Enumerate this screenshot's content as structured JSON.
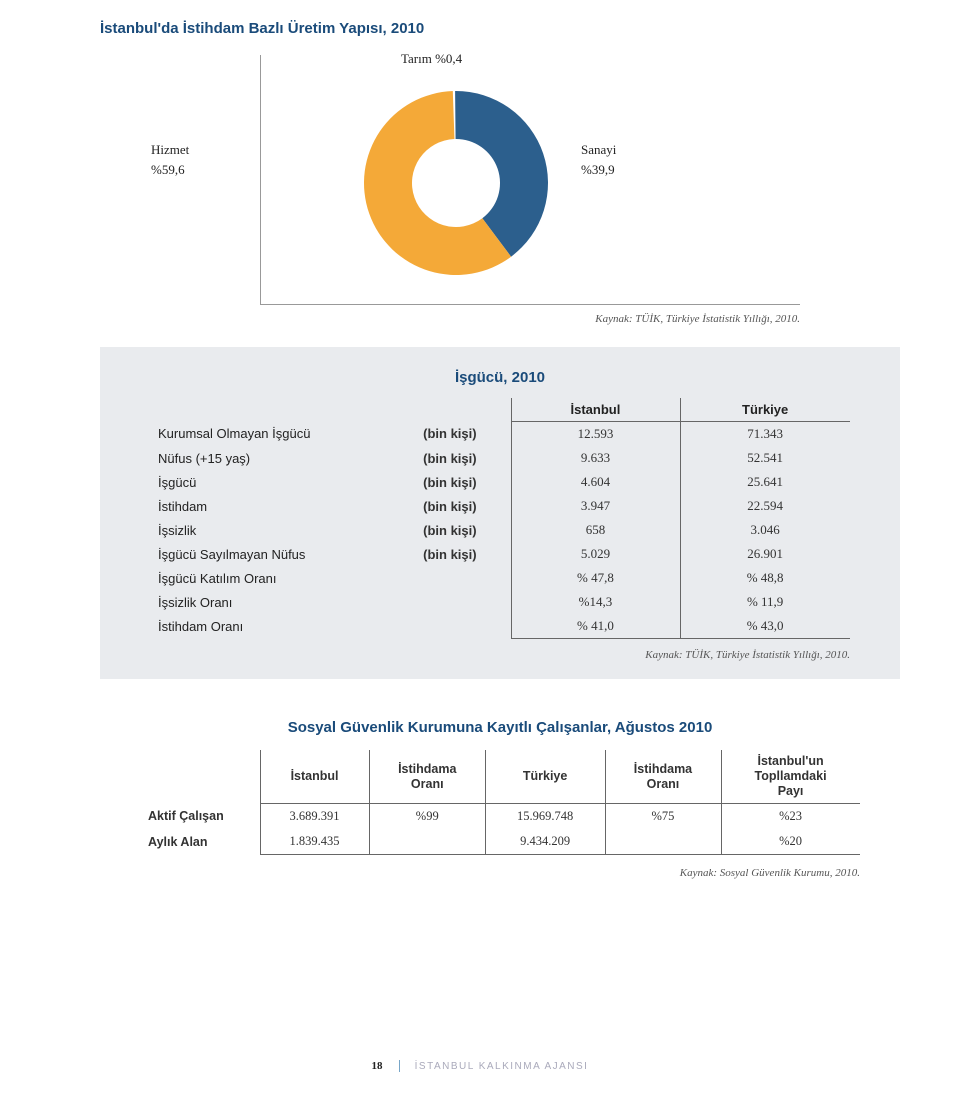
{
  "chart": {
    "title": "İstanbul'da İstihdam Bazlı Üretim Yapısı, 2010",
    "type": "donut",
    "inner_radius": 44,
    "outer_radius": 92,
    "top_label": "Tarım %0,4",
    "left_label_line1": "Hizmet",
    "left_label_line2": "%59,6",
    "right_label_line1": "Sanayi",
    "right_label_line2": "%39,9",
    "slices": [
      {
        "label": "Tarım",
        "value": 0.4,
        "color": "#ffffff"
      },
      {
        "label": "Sanayi",
        "value": 39.9,
        "color": "#2c5f8d"
      },
      {
        "label": "Hizmet",
        "value": 59.6,
        "color": "#f4a938"
      }
    ],
    "background_color": "#ffffff",
    "axis_color": "#999999",
    "source": "Kaynak: TÜİK, Türkiye İstatistik Yıllığı, 2010."
  },
  "panel": {
    "title": "İşgücü, 2010",
    "background_color": "#e9ebee",
    "col1": "İstanbul",
    "col2": "Türkiye",
    "rows": [
      {
        "label": "Kurumsal Olmayan İşgücü",
        "unit": "(bin kişi)",
        "v1": "12.593",
        "v2": "71.343"
      },
      {
        "label": "Nüfus (+15 yaş)",
        "unit": "(bin kişi)",
        "v1": "9.633",
        "v2": "52.541"
      },
      {
        "label": "İşgücü",
        "unit": "(bin kişi)",
        "v1": "4.604",
        "v2": "25.641"
      },
      {
        "label": "İstihdam",
        "unit": "(bin kişi)",
        "v1": "3.947",
        "v2": "22.594"
      },
      {
        "label": "İşsizlik",
        "unit": "(bin kişi)",
        "v1": "658",
        "v2": "3.046"
      },
      {
        "label": "İşgücü Sayılmayan Nüfus",
        "unit": "(bin kişi)",
        "v1": "5.029",
        "v2": "26.901"
      },
      {
        "label": "İşgücü Katılım Oranı",
        "unit": "",
        "v1": "% 47,8",
        "v2": "% 48,8"
      },
      {
        "label": "İşsizlik Oranı",
        "unit": "",
        "v1": "%14,3",
        "v2": "% 11,9"
      },
      {
        "label": "İstihdam Oranı",
        "unit": "",
        "v1": "% 41,0",
        "v2": "% 43,0"
      }
    ],
    "source": "Kaynak: TÜİK, Türkiye İstatistik Yıllığı, 2010."
  },
  "sec3": {
    "title": "Sosyal Güvenlik Kurumuna Kayıtlı Çalışanlar, Ağustos 2010",
    "columns": [
      "İstanbul",
      "İstihdama Oranı",
      "Türkiye",
      "İstihdama Oranı",
      "İstanbul'un Toplumdaki Payı"
    ],
    "col_h1": "İstanbul",
    "col_h2a": "İstihdama",
    "col_h2b": "Oranı",
    "col_h3": "Türkiye",
    "col_h4a": "İstihdama",
    "col_h4b": "Oranı",
    "col_h5a": "İstanbul'un",
    "col_h5b": "Topllamdaki",
    "col_h5c": "Payı",
    "rows": [
      {
        "label": "Aktif Çalışan",
        "c1": "3.689.391",
        "c2": "%99",
        "c3": "15.969.748",
        "c4": "%75",
        "c5": "%23"
      },
      {
        "label": "Aylık Alan",
        "c1": "1.839.435",
        "c2": "",
        "c3": "9.434.209",
        "c4": "",
        "c5": "%20"
      }
    ],
    "source": "Kaynak: Sosyal Güvenlik Kurumu, 2010."
  },
  "footer": {
    "page": "18",
    "text": "İSTANBUL KALKINMA AJANSI"
  }
}
